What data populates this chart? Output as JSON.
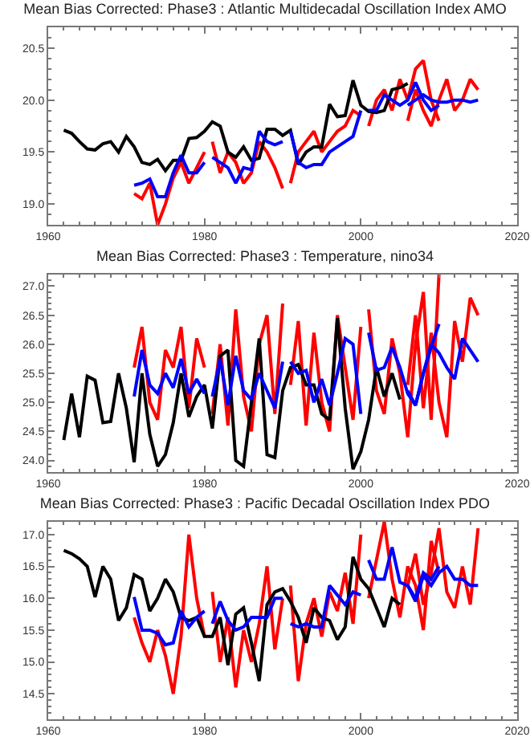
{
  "chart_data": [
    {
      "type": "line",
      "title": "Mean Bias Corrected: Phase3 : Atlantic Multidecadal Oscillation Index AMO",
      "xlim": [
        1960,
        2020
      ],
      "xticks": [
        1960,
        1980,
        2000,
        2020
      ],
      "ylim": [
        18.8,
        20.7
      ],
      "yticks": [
        {
          "value": 19,
          "label": "19.0"
        },
        19.5,
        {
          "value": 20,
          "label": "20.0"
        },
        20.5
      ],
      "grid": false,
      "marker": "none",
      "line_style": "solid",
      "series": [
        {
          "color": "#ff0000",
          "x": [
            1971,
            1972,
            1973,
            1974,
            1975,
            1976,
            1977,
            1978,
            1979,
            1980
          ],
          "values": [
            19.1,
            19.05,
            19.2,
            18.8,
            19.0,
            19.25,
            19.4,
            19.2,
            19.35,
            19.5
          ]
        },
        {
          "color": "#ff0000",
          "x": [
            1981,
            1982,
            1983,
            1984,
            1985,
            1986,
            1987,
            1988,
            1989,
            1990
          ],
          "values": [
            19.6,
            19.3,
            19.5,
            19.4,
            19.2,
            19.3,
            19.6,
            19.5,
            19.35,
            19.15
          ]
        },
        {
          "color": "#ff0000",
          "x": [
            1991,
            1992,
            1993,
            1994,
            1995,
            1996,
            1997,
            1998,
            1999,
            2000
          ],
          "values": [
            19.2,
            19.5,
            19.6,
            19.7,
            19.5,
            19.6,
            19.7,
            19.75,
            19.9,
            19.85
          ]
        },
        {
          "color": "#ff0000",
          "x": [
            2001,
            2002,
            2003,
            2004,
            2005,
            2006,
            2007,
            2008,
            2009,
            2010
          ],
          "values": [
            19.75,
            20.0,
            20.1,
            19.9,
            20.2,
            20.0,
            20.3,
            20.38,
            20.0,
            19.8
          ]
        },
        {
          "color": "#ff0000",
          "x": [
            2006,
            2007,
            2008,
            2009,
            2010,
            2011,
            2012,
            2013,
            2014,
            2015
          ],
          "values": [
            19.8,
            20.1,
            19.9,
            19.75,
            20.0,
            20.2,
            19.9,
            20.0,
            20.2,
            20.1
          ]
        },
        {
          "color": "#000000",
          "x": [
            1962,
            1963,
            1964,
            1965,
            1966,
            1967,
            1968,
            1969,
            1970,
            1971,
            1972,
            1973,
            1974,
            1975,
            1976,
            1977,
            1978,
            1979,
            1980,
            1981,
            1982,
            1983,
            1984,
            1985,
            1986,
            1987,
            1988,
            1989,
            1990,
            1991,
            1992,
            1993,
            1994,
            1995,
            1996,
            1997,
            1998,
            1999,
            2000,
            2001,
            2002,
            2003,
            2004,
            2005,
            2006
          ],
          "values": [
            19.71,
            19.68,
            19.6,
            19.53,
            19.52,
            19.58,
            19.6,
            19.5,
            19.65,
            19.55,
            19.4,
            19.38,
            19.43,
            19.32,
            19.42,
            19.42,
            19.63,
            19.64,
            19.7,
            19.79,
            19.75,
            19.5,
            19.45,
            19.55,
            19.42,
            19.44,
            19.72,
            19.72,
            19.66,
            19.71,
            19.38,
            19.5,
            19.55,
            19.55,
            19.96,
            19.84,
            19.85,
            20.19,
            19.95,
            19.89,
            19.88,
            19.9,
            20.1,
            20.12,
            20.16
          ]
        },
        {
          "color": "#0000ff",
          "x": [
            1971,
            1972,
            1973,
            1974,
            1975,
            1976,
            1977,
            1978,
            1979,
            1980
          ],
          "values": [
            19.18,
            19.2,
            19.24,
            19.07,
            19.07,
            19.3,
            19.47,
            19.3,
            19.3,
            19.4
          ]
        },
        {
          "color": "#0000ff",
          "x": [
            1981,
            1982,
            1983,
            1984,
            1985,
            1986,
            1987,
            1988,
            1989,
            1990
          ],
          "values": [
            19.45,
            19.4,
            19.35,
            19.2,
            19.35,
            19.33,
            19.7,
            19.6,
            19.57,
            19.6
          ]
        },
        {
          "color": "#0000ff",
          "x": [
            1991,
            1992,
            1993,
            1994,
            1995,
            1996,
            1997,
            1998,
            1999,
            2000
          ],
          "values": [
            19.7,
            19.4,
            19.35,
            19.38,
            19.38,
            19.5,
            19.55,
            19.6,
            19.65,
            19.9
          ]
        },
        {
          "color": "#0000ff",
          "x": [
            2001,
            2002,
            2003,
            2004,
            2005,
            2006,
            2007,
            2008,
            2009,
            2010
          ],
          "values": [
            19.9,
            19.9,
            20.05,
            20.0,
            19.95,
            20.0,
            20.17,
            20.0,
            19.9,
            19.95
          ]
        },
        {
          "color": "#0000ff",
          "x": [
            2006,
            2007,
            2008,
            2009,
            2010,
            2011,
            2012,
            2013,
            2014,
            2015
          ],
          "values": [
            19.95,
            20.0,
            20.05,
            20.0,
            19.98,
            19.98,
            20.0,
            20.0,
            19.98,
            20.0
          ]
        }
      ]
    },
    {
      "type": "line",
      "title": "Mean Bias Corrected: Phase3 : Temperature, nino34",
      "xlim": [
        1960,
        2020
      ],
      "xticks": [
        1960,
        1980,
        2000,
        2020
      ],
      "ylim": [
        23.8,
        27.2
      ],
      "yticks": [
        {
          "value": 24,
          "label": "24.0"
        },
        24.5,
        {
          "value": 25,
          "label": "25.0"
        },
        25.5,
        {
          "value": 26,
          "label": "26.0"
        },
        26.5,
        {
          "value": 27,
          "label": "27.0"
        }
      ],
      "grid": false,
      "marker": "none",
      "line_style": "solid",
      "series": [
        {
          "color": "#ff0000",
          "x": [
            1971,
            1972,
            1973,
            1974,
            1975,
            1976,
            1977,
            1978,
            1979,
            1980
          ],
          "values": [
            25.6,
            26.3,
            25.0,
            24.7,
            25.9,
            25.6,
            26.3,
            24.9,
            26.1,
            25.6
          ]
        },
        {
          "color": "#ff0000",
          "x": [
            1981,
            1982,
            1983,
            1984,
            1985,
            1986,
            1987,
            1988,
            1989,
            1990
          ],
          "values": [
            24.8,
            26.0,
            24.6,
            26.6,
            25.1,
            24.5,
            26.0,
            26.5,
            24.8,
            26.7
          ]
        },
        {
          "color": "#ff0000",
          "x": [
            1991,
            1992,
            1993,
            1994,
            1995,
            1996,
            1997,
            1998,
            1999,
            2000
          ],
          "values": [
            25.3,
            26.4,
            24.6,
            26.2,
            25.0,
            24.5,
            26.5,
            25.6,
            24.7,
            26.3
          ]
        },
        {
          "color": "#ff0000",
          "x": [
            2001,
            2002,
            2003,
            2004,
            2005,
            2006,
            2007,
            2008,
            2009,
            2010
          ],
          "values": [
            26.6,
            25.2,
            24.8,
            26.1,
            25.5,
            24.4,
            26.0,
            26.9,
            24.7,
            27.2
          ]
        },
        {
          "color": "#ff0000",
          "x": [
            2006,
            2007,
            2008,
            2009,
            2010,
            2011,
            2012,
            2013,
            2014,
            2015
          ],
          "values": [
            25.3,
            26.5,
            24.9,
            26.2,
            25.0,
            24.4,
            26.4,
            25.7,
            26.8,
            26.5
          ]
        },
        {
          "color": "#000000",
          "x": [
            1962,
            1963,
            1964,
            1965,
            1966,
            1967,
            1968,
            1969,
            1970,
            1971,
            1972,
            1973,
            1974,
            1975,
            1976,
            1977,
            1978,
            1979,
            1980,
            1981,
            1982,
            1983,
            1984,
            1985,
            1986,
            1987,
            1988,
            1989,
            1990,
            1991,
            1992,
            1993,
            1994,
            1995,
            1996,
            1997,
            1998,
            1999,
            2000,
            2001,
            2002,
            2003,
            2004,
            2005
          ],
          "values": [
            24.35,
            25.15,
            24.4,
            25.45,
            25.38,
            24.65,
            24.67,
            25.5,
            24.9,
            23.97,
            25.5,
            24.45,
            23.9,
            24.1,
            24.65,
            25.5,
            24.75,
            25.1,
            25.3,
            24.55,
            25.8,
            25.9,
            24.0,
            23.9,
            25.0,
            26.1,
            24.1,
            24.05,
            25.2,
            25.6,
            25.65,
            25.3,
            25.3,
            24.8,
            24.7,
            26.45,
            24.9,
            23.85,
            24.15,
            24.7,
            25.6,
            25.1,
            25.5,
            25.05
          ]
        },
        {
          "color": "#0000ff",
          "x": [
            1971,
            1972,
            1973,
            1974,
            1975,
            1976,
            1977,
            1978,
            1979,
            1980
          ],
          "values": [
            25.1,
            25.9,
            25.3,
            25.15,
            25.5,
            25.25,
            25.75,
            25.15,
            25.4,
            25.15
          ]
        },
        {
          "color": "#0000ff",
          "x": [
            1981,
            1982,
            1983,
            1984,
            1985,
            1986,
            1987,
            1988,
            1989,
            1990
          ],
          "values": [
            25.1,
            25.75,
            24.95,
            25.8,
            25.2,
            25.05,
            25.5,
            25.2,
            24.9,
            25.7
          ]
        },
        {
          "color": "#0000ff",
          "x": [
            1991,
            1992,
            1993,
            1994,
            1995,
            1996,
            1997,
            1998,
            1999,
            2000
          ],
          "values": [
            25.7,
            25.5,
            25.55,
            25.0,
            25.4,
            24.95,
            25.5,
            26.1,
            26.0,
            24.8
          ]
        },
        {
          "color": "#0000ff",
          "x": [
            2001,
            2002,
            2003,
            2004,
            2005,
            2006,
            2007,
            2008,
            2009,
            2010
          ],
          "values": [
            26.2,
            25.55,
            25.6,
            25.95,
            25.6,
            25.15,
            24.95,
            25.5,
            25.95,
            26.35
          ]
        },
        {
          "color": "#0000ff",
          "x": [
            2006,
            2007,
            2008,
            2009,
            2010,
            2011,
            2012,
            2013,
            2014,
            2015
          ],
          "values": [
            25.2,
            24.95,
            25.5,
            26.0,
            25.85,
            25.6,
            25.4,
            26.1,
            25.9,
            25.7
          ]
        }
      ]
    },
    {
      "type": "line",
      "title": "Mean Bias Corrected: Phase3 : Pacific Decadal Oscillation Index PDO",
      "xlim": [
        1960,
        2020
      ],
      "xticks": [
        1960,
        1980,
        2000,
        2020
      ],
      "ylim": [
        14.1,
        17.2
      ],
      "yticks": [
        14.5,
        {
          "value": 15,
          "label": "15.0"
        },
        15.5,
        {
          "value": 16,
          "label": "16.0"
        },
        16.5,
        {
          "value": 17,
          "label": "17.0"
        }
      ],
      "grid": false,
      "marker": "none",
      "line_style": "solid",
      "series": [
        {
          "color": "#ff0000",
          "x": [
            1971,
            1972,
            1973,
            1974,
            1975,
            1976,
            1977,
            1978,
            1979,
            1980
          ],
          "values": [
            15.7,
            15.3,
            15.0,
            15.5,
            15.1,
            14.5,
            15.4,
            17.0,
            16.0,
            15.4
          ]
        },
        {
          "color": "#ff0000",
          "x": [
            1981,
            1982,
            1983,
            1984,
            1985,
            1986,
            1987,
            1988,
            1989,
            1990
          ],
          "values": [
            16.1,
            15.0,
            15.7,
            14.6,
            15.5,
            15.0,
            15.6,
            16.5,
            15.2,
            16.0
          ]
        },
        {
          "color": "#ff0000",
          "x": [
            1991,
            1992,
            1993,
            1994,
            1995,
            1996,
            1997,
            1998,
            1999,
            2000
          ],
          "values": [
            16.2,
            14.7,
            15.6,
            16.0,
            15.4,
            16.1,
            15.8,
            16.4,
            15.6,
            17.0
          ]
        },
        {
          "color": "#ff0000",
          "x": [
            2001,
            2002,
            2003,
            2004,
            2005,
            2006,
            2007,
            2008,
            2009,
            2010
          ],
          "values": [
            16.0,
            16.6,
            17.2,
            16.3,
            15.7,
            16.5,
            16.2,
            15.5,
            16.9,
            16.4
          ]
        },
        {
          "color": "#ff0000",
          "x": [
            2006,
            2007,
            2008,
            2009,
            2010,
            2011,
            2012,
            2013,
            2014,
            2015
          ],
          "values": [
            16.2,
            16.7,
            15.9,
            16.4,
            17.1,
            16.1,
            15.85,
            16.5,
            15.9,
            17.1
          ]
        },
        {
          "color": "#000000",
          "x": [
            1962,
            1963,
            1964,
            1965,
            1966,
            1967,
            1968,
            1969,
            1970,
            1971,
            1972,
            1973,
            1974,
            1975,
            1976,
            1977,
            1978,
            1979,
            1980,
            1981,
            1982,
            1983,
            1984,
            1985,
            1986,
            1987,
            1988,
            1989,
            1990,
            1991,
            1992,
            1993,
            1994,
            1995,
            1996,
            1997,
            1998,
            1999,
            2000,
            2001,
            2002,
            2003,
            2004,
            2005
          ],
          "values": [
            16.75,
            16.7,
            16.62,
            16.5,
            16.02,
            16.5,
            16.3,
            15.65,
            15.85,
            16.37,
            16.3,
            15.8,
            16.0,
            16.3,
            16.1,
            15.7,
            15.65,
            15.7,
            15.4,
            15.4,
            15.7,
            14.95,
            15.75,
            15.85,
            15.3,
            14.7,
            15.9,
            16.1,
            16.15,
            15.95,
            15.7,
            15.3,
            15.85,
            15.7,
            15.65,
            15.35,
            15.55,
            16.65,
            16.3,
            16.15,
            15.85,
            15.55,
            16.0,
            15.9
          ]
        },
        {
          "color": "#0000ff",
          "x": [
            1971,
            1972,
            1973,
            1974,
            1975,
            1976,
            1977,
            1978,
            1979,
            1980
          ],
          "values": [
            16.02,
            15.5,
            15.5,
            15.45,
            15.27,
            15.3,
            15.8,
            15.55,
            15.7,
            15.8
          ]
        },
        {
          "color": "#0000ff",
          "x": [
            1981,
            1982,
            1983,
            1984,
            1985,
            1986,
            1987,
            1988,
            1989,
            1990
          ],
          "values": [
            15.6,
            15.95,
            15.65,
            15.5,
            15.55,
            15.7,
            15.7,
            15.7,
            16.0,
            16.0
          ]
        },
        {
          "color": "#0000ff",
          "x": [
            1991,
            1992,
            1993,
            1994,
            1995,
            1996,
            1997,
            1998,
            1999,
            2000
          ],
          "values": [
            15.6,
            15.55,
            15.6,
            15.55,
            15.55,
            16.2,
            16.05,
            15.9,
            16.1,
            16.05
          ]
        },
        {
          "color": "#0000ff",
          "x": [
            2001,
            2002,
            2003,
            2004,
            2005,
            2006,
            2007,
            2008,
            2009,
            2010
          ],
          "values": [
            16.6,
            16.3,
            16.3,
            16.8,
            16.25,
            16.2,
            16.0,
            16.4,
            16.3,
            16.5
          ]
        },
        {
          "color": "#0000ff",
          "x": [
            2006,
            2007,
            2008,
            2009,
            2010,
            2011,
            2012,
            2013,
            2014,
            2015
          ],
          "values": [
            16.2,
            15.95,
            16.35,
            16.2,
            16.4,
            16.5,
            16.3,
            16.3,
            16.2,
            16.2
          ]
        }
      ]
    }
  ]
}
